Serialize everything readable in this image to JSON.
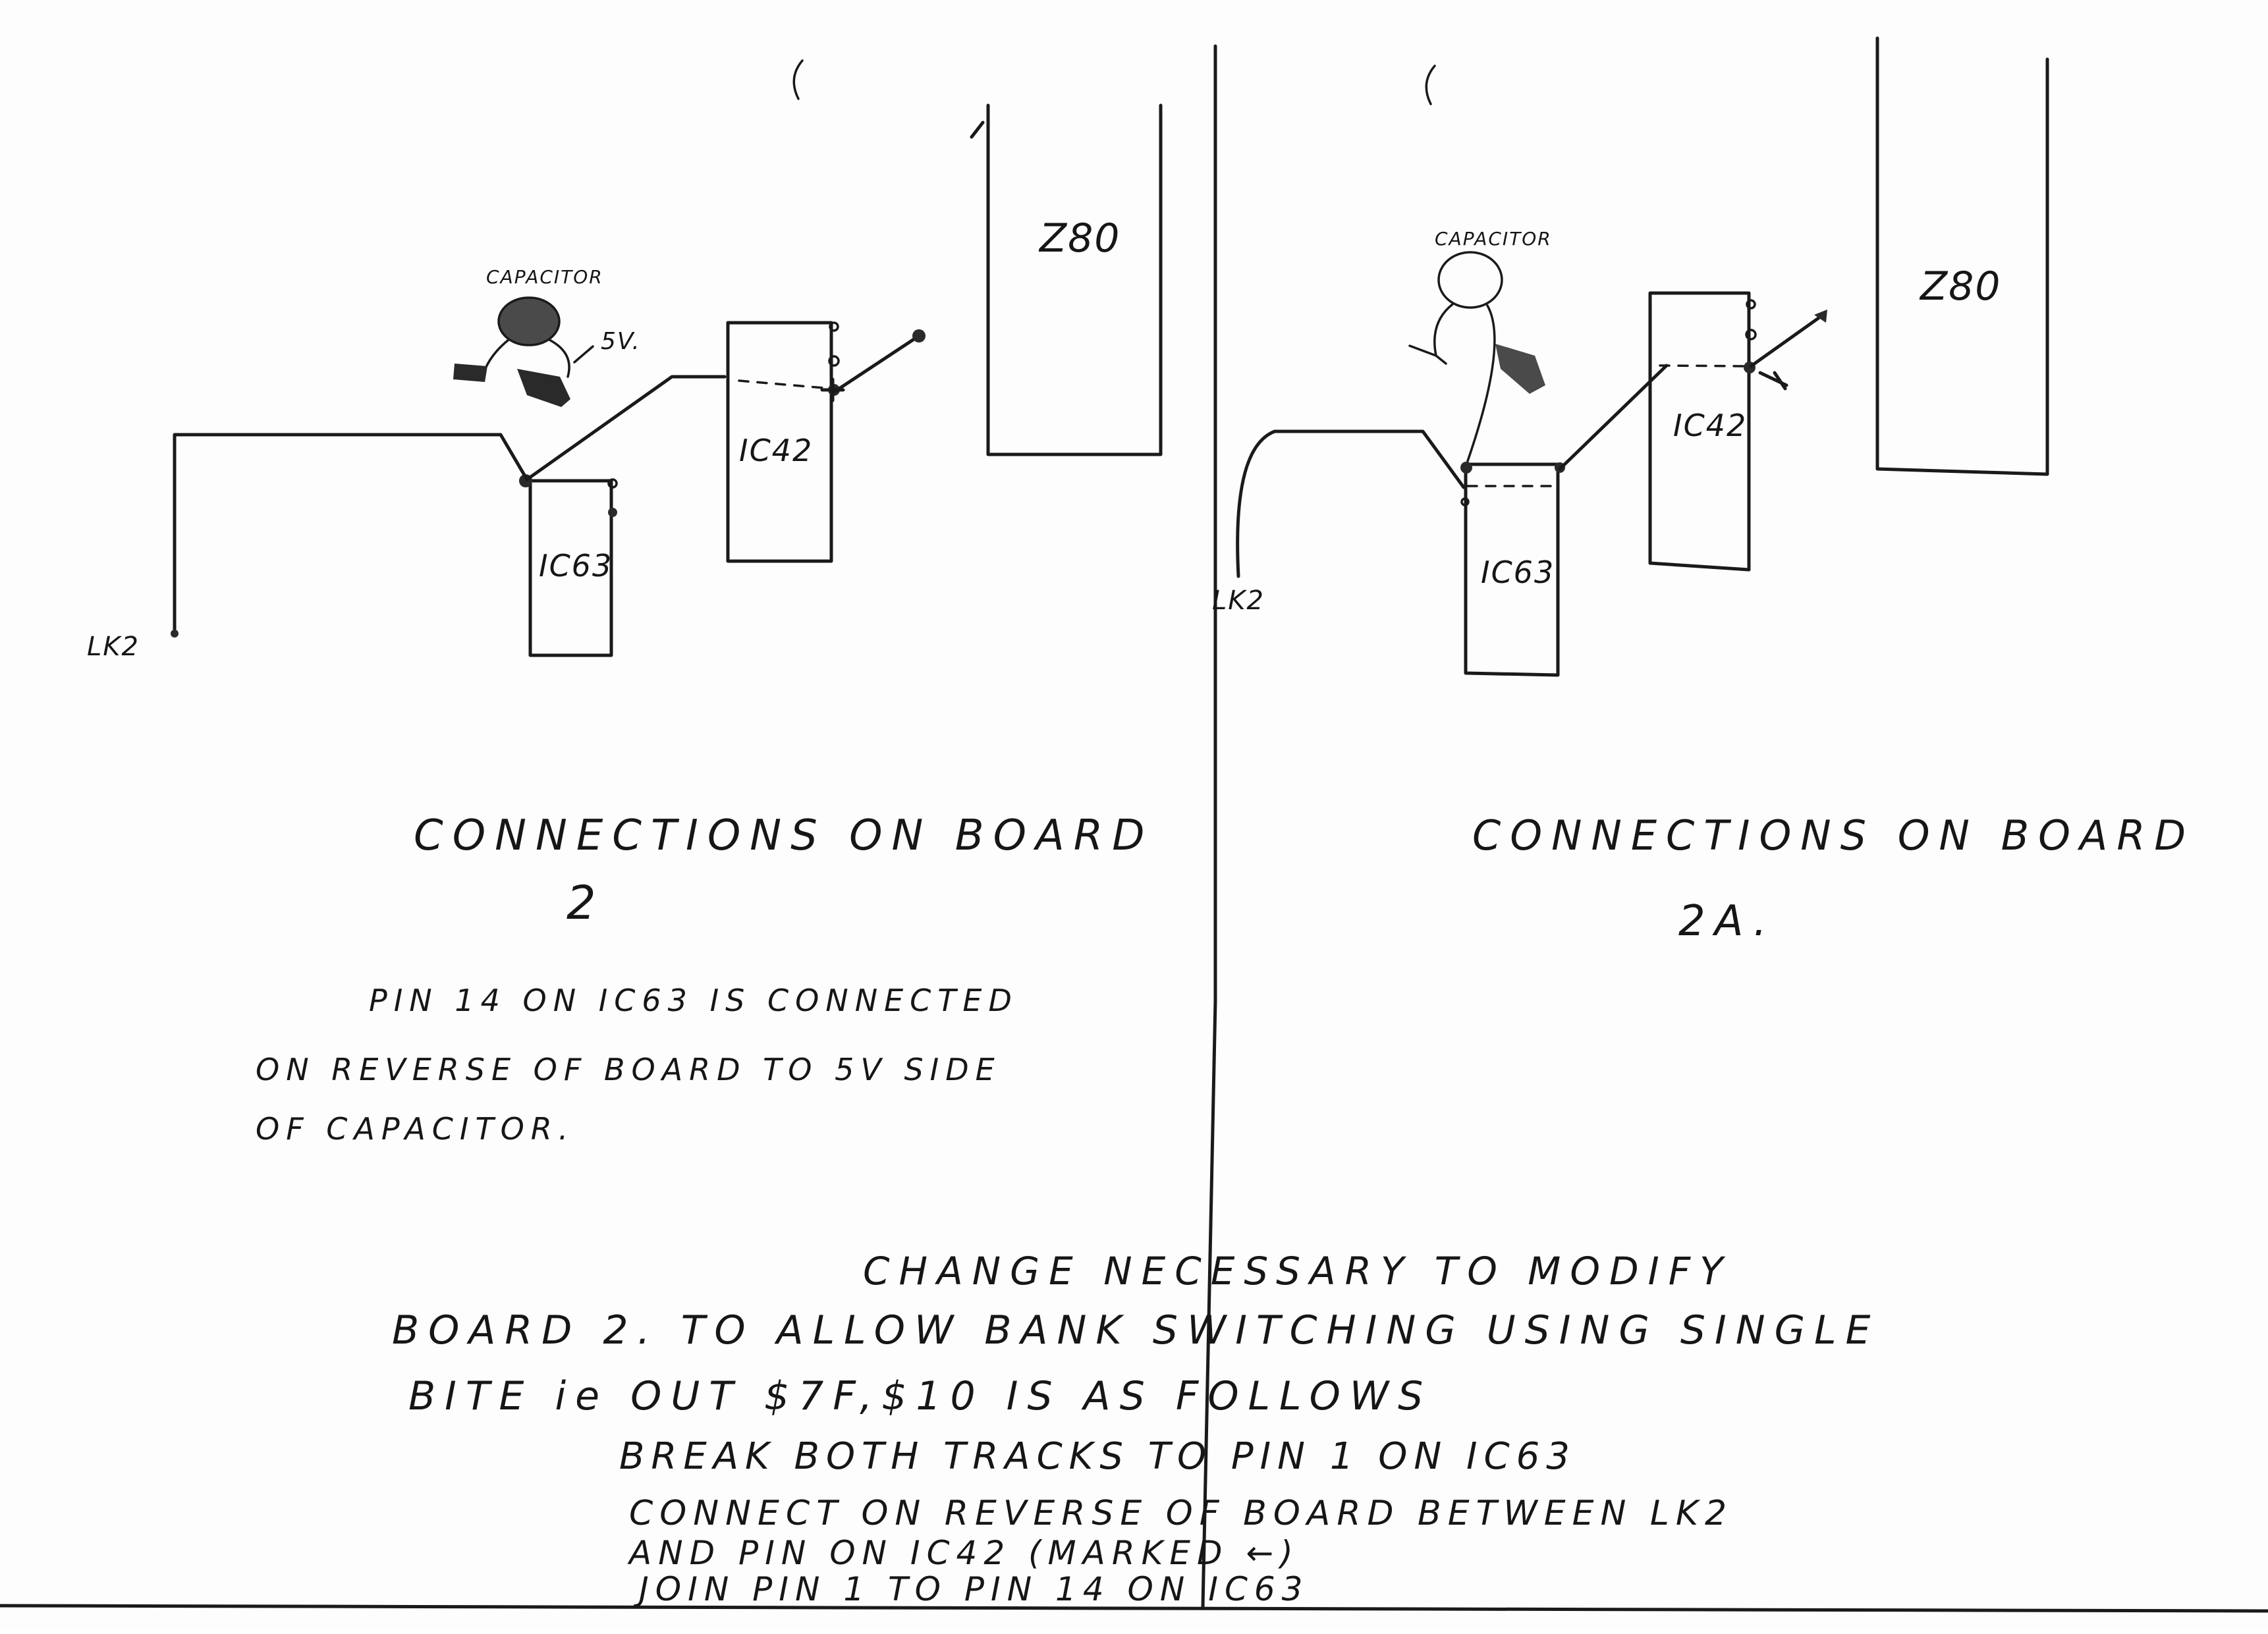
{
  "left_board": {
    "capacitor_label": "CAPACITOR",
    "voltage_label": "5V.",
    "ic42_label": "IC42",
    "ic63_label": "IC63",
    "z80_label": "Z80",
    "lk2_label": "LK2",
    "title": "CONNECTIONS ON BOARD",
    "number": "2",
    "note_lines": [
      "PIN 14   ON   IC63 IS CONNECTED",
      "ON REVERSE OF BOARD TO 5V SIDE",
      "OF CAPACITOR."
    ]
  },
  "right_board": {
    "capacitor_label": "CAPACITOR",
    "ic42_label": "IC42",
    "ic63_label": "IC63",
    "z80_label": "Z80",
    "lk2_label": "LK2",
    "title": "CONNECTIONS ON BOARD",
    "number": "2A."
  },
  "instructions": {
    "heading": "CHANGE NECESSARY TO MODIFY",
    "line1": "BOARD 2. TO  ALLOW  BANK  SWITCHING USING SINGLE",
    "line2": "BITE  ie  OUT  $7F,$10  IS  AS FOLLOWS",
    "steps": [
      "BREAK BOTH TRACKS TO PIN 1 ON IC63",
      "CONNECT ON REVERSE OF BOARD BETWEEN LK2",
      "AND PIN ON IC42 (MARKED ←)",
      "JOIN PIN 1 TO PIN 14 ON IC63"
    ]
  }
}
